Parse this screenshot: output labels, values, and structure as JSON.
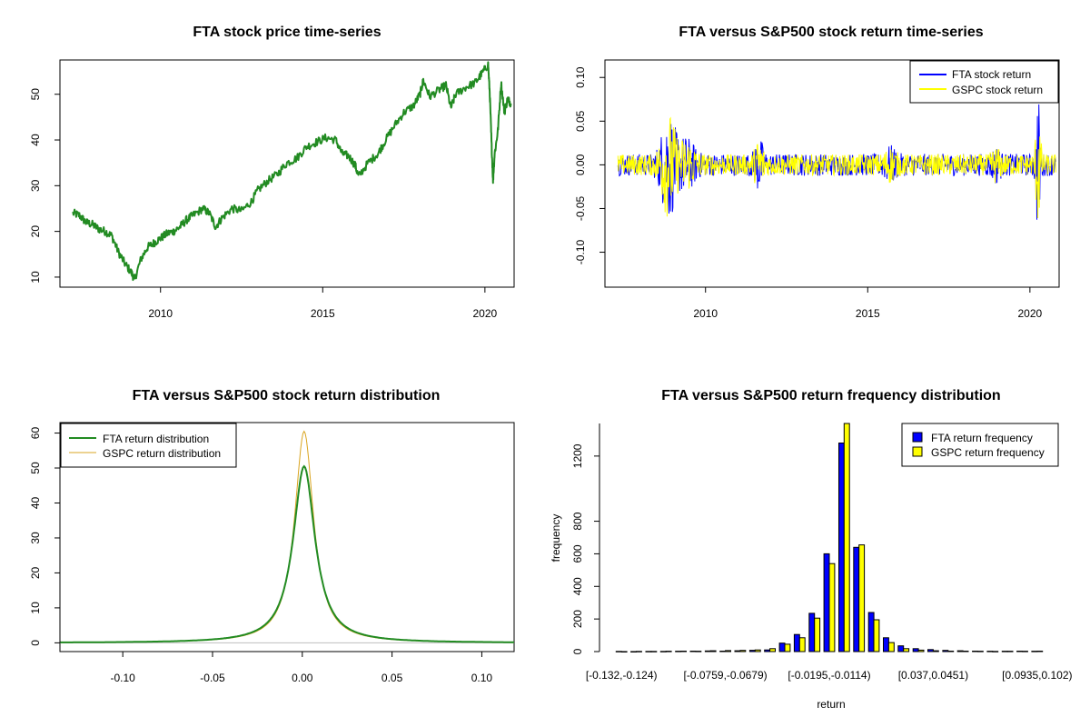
{
  "colors": {
    "fta": "#0000ff",
    "gspc": "#ffff00",
    "price": "#228b22",
    "gspc_density": "#daa520",
    "axis": "#000000",
    "density_baseline": "#bebebe"
  },
  "chart_data": [
    {
      "type": "line",
      "title": "FTA stock price time-series",
      "xlabel": "",
      "ylabel": "",
      "xlim": [
        2006.9,
        2020.9
      ],
      "ylim": [
        7.8,
        57.5
      ],
      "xticks": [
        "2010",
        "2015",
        "2020"
      ],
      "yticks": [
        "10",
        "20",
        "30",
        "40",
        "50"
      ],
      "series": [
        {
          "color": "#228b22",
          "x": [
            2007.3,
            2007.5,
            2007.7,
            2007.9,
            2008.1,
            2008.3,
            2008.5,
            2008.7,
            2008.9,
            2009.1,
            2009.2,
            2009.4,
            2009.6,
            2009.8,
            2010.0,
            2010.2,
            2010.4,
            2010.6,
            2010.8,
            2011.0,
            2011.3,
            2011.5,
            2011.7,
            2011.9,
            2012.2,
            2012.5,
            2012.8,
            2013.0,
            2013.3,
            2013.6,
            2013.9,
            2014.2,
            2014.5,
            2014.8,
            2015.1,
            2015.4,
            2015.6,
            2015.8,
            2016.0,
            2016.1,
            2016.4,
            2016.7,
            2016.9,
            2017.2,
            2017.5,
            2017.8,
            2018.0,
            2018.1,
            2018.3,
            2018.6,
            2018.8,
            2018.95,
            2019.1,
            2019.4,
            2019.7,
            2019.9,
            2020.1,
            2020.15,
            2020.2,
            2020.25,
            2020.3,
            2020.4,
            2020.5,
            2020.6,
            2020.7,
            2020.8
          ],
          "values": [
            24.0,
            23.5,
            22.0,
            21.5,
            20.5,
            20.0,
            19.0,
            15.5,
            13.0,
            11.0,
            9.5,
            14.0,
            16.5,
            17.5,
            18.5,
            19.5,
            20.0,
            21.0,
            22.5,
            23.5,
            25.0,
            24.0,
            21.0,
            23.0,
            25.0,
            24.5,
            26.5,
            29.0,
            31.0,
            32.5,
            35.0,
            36.0,
            38.5,
            39.5,
            40.5,
            40.0,
            37.0,
            36.5,
            34.5,
            32.0,
            35.0,
            37.0,
            39.5,
            43.0,
            46.0,
            47.5,
            50.0,
            53.0,
            49.5,
            51.0,
            52.0,
            47.0,
            50.0,
            51.5,
            52.5,
            54.5,
            56.5,
            50.0,
            40.0,
            31.0,
            37.0,
            42.0,
            52.5,
            46.0,
            49.0,
            48.0
          ]
        }
      ]
    },
    {
      "type": "line",
      "title": "FTA versus S&P500 stock return time-series",
      "xlabel": "",
      "ylabel": "",
      "xlim": [
        2006.9,
        2020.9
      ],
      "ylim": [
        -0.14,
        0.12
      ],
      "xticks": [
        "2010",
        "2015",
        "2020"
      ],
      "yticks": [
        "-0.10",
        "-0.05",
        "0.00",
        "0.05",
        "0.10"
      ],
      "legend": {
        "position": "top-right"
      },
      "series": [
        {
          "name": "FTA stock return",
          "color": "#0000ff"
        },
        {
          "name": "GSPC stock return",
          "color": "#ffff00"
        }
      ]
    },
    {
      "type": "area",
      "title": "FTA versus S&P500 stock return distribution",
      "xlabel": "",
      "ylabel": "",
      "xlim": [
        -0.135,
        0.118
      ],
      "ylim": [
        -2.5,
        63
      ],
      "xticks": [
        "-0.10",
        "-0.05",
        "0.00",
        "0.05",
        "0.10"
      ],
      "yticks": [
        "0",
        "10",
        "20",
        "30",
        "40",
        "50",
        "60"
      ],
      "legend": {
        "position": "top-left"
      },
      "series": [
        {
          "name": "FTA return distribution",
          "color": "#228b22",
          "peak": 50.5,
          "center": 0.001
        },
        {
          "name": "GSPC return distribution",
          "color": "#daa520",
          "peak": 60.5,
          "center": 0.001
        }
      ]
    },
    {
      "type": "bar",
      "title": "FTA versus S&P500 return frequency distribution",
      "xlabel": "return",
      "ylabel": "frequency",
      "ylim": [
        0,
        1400
      ],
      "yticks": [
        "0",
        "200",
        "400",
        "600",
        "800",
        "1200"
      ],
      "xtick_labels": [
        "[-0.132,-0.124)",
        "[-0.0759,-0.0679)",
        "[-0.0195,-0.0114)",
        "[0.037,0.0451)",
        "[0.0935,0.102)"
      ],
      "legend": {
        "position": "top-right"
      },
      "series": [
        {
          "name": "FTA return frequency",
          "color": "#0000ff",
          "values": [
            1,
            0,
            1,
            1,
            2,
            3,
            4,
            3,
            5,
            8,
            10,
            52,
            105,
            235,
            600,
            1280,
            640,
            240,
            85,
            35,
            18,
            12,
            7,
            5,
            3,
            2,
            2,
            3,
            2
          ]
        },
        {
          "name": "GSPC return frequency",
          "color": "#ffff00",
          "values": [
            0,
            1,
            1,
            2,
            3,
            2,
            5,
            6,
            7,
            10,
            18,
            45,
            85,
            205,
            540,
            1400,
            655,
            195,
            55,
            18,
            9,
            5,
            3,
            3,
            2,
            1,
            2,
            2,
            3
          ]
        }
      ]
    }
  ]
}
